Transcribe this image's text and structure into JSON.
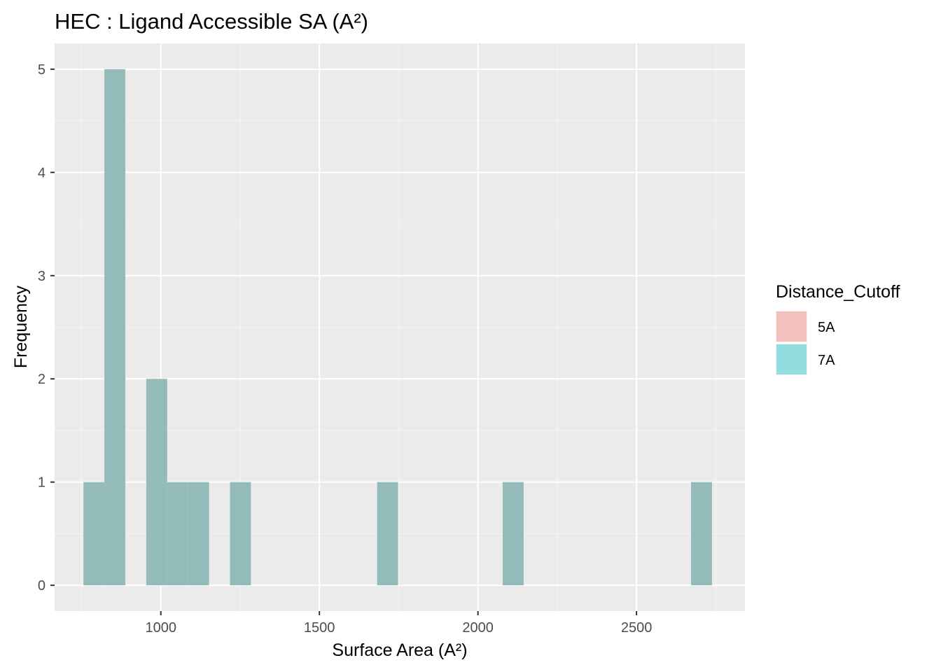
{
  "chart_data": {
    "type": "bar",
    "title": "HEC : Ligand Accessible SA (A²)",
    "xlabel": "Surface Area (A²)",
    "ylabel": "Frequency",
    "xlim": [
      665,
      2842
    ],
    "ylim": [
      -0.25,
      5.25
    ],
    "x_ticks": [
      1000,
      1500,
      2000,
      2500
    ],
    "y_ticks": [
      0,
      1,
      2,
      3,
      4,
      5
    ],
    "x_minor": [
      750,
      1250,
      1750,
      2250,
      2750
    ],
    "y_minor": [
      0.5,
      1.5,
      2.5,
      3.5,
      4.5
    ],
    "grid": true,
    "bin_width": 66,
    "legend": {
      "title": "Distance_Cutoff",
      "position": "right",
      "entries": [
        {
          "label": "5A",
          "color": "#F8766D"
        },
        {
          "label": "7A",
          "color": "#00BFC4"
        }
      ]
    },
    "series": [
      {
        "name": "7A",
        "color": "#00BFC4",
        "bins": [
          {
            "x": 789,
            "count": 1
          },
          {
            "x": 855,
            "count": 5
          },
          {
            "x": 987,
            "count": 2
          },
          {
            "x": 1053,
            "count": 1
          },
          {
            "x": 1119,
            "count": 1
          },
          {
            "x": 1251,
            "count": 1
          },
          {
            "x": 1715,
            "count": 1
          },
          {
            "x": 2111,
            "count": 1
          },
          {
            "x": 2705,
            "count": 1
          }
        ]
      }
    ]
  }
}
